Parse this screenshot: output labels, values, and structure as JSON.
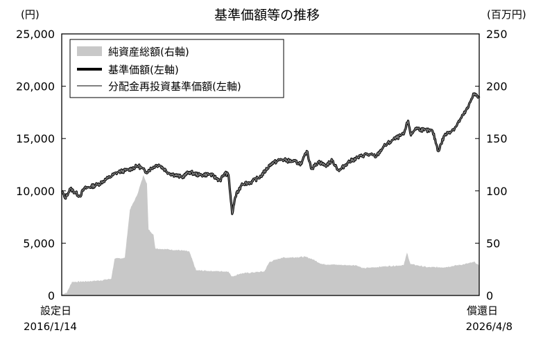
{
  "chart_data": {
    "type": "line",
    "title": "基準価額等の推移",
    "left_axis_unit": "(円)",
    "right_axis_unit": "(百万円)",
    "left_axis": {
      "ylim": [
        0,
        25000
      ],
      "ticks": [
        "0",
        "5,000",
        "10,000",
        "15,000",
        "20,000",
        "25,000"
      ]
    },
    "right_axis": {
      "ylim": [
        0,
        250
      ],
      "ticks": [
        "0",
        "50",
        "100",
        "150",
        "200",
        "250"
      ]
    },
    "x_axis": {
      "start_label": "設定日",
      "start_date": "2016/1/14",
      "end_label": "償還日",
      "end_date": "2026/4/8",
      "xlim": [
        "2016-01-14",
        "2026-04-08"
      ]
    },
    "legend": {
      "placement": "top-left",
      "entries": [
        "純資産総額(右軸)",
        "基準価額(左軸)",
        "分配金再投資基準価額(左軸)"
      ]
    },
    "colors": {
      "net_assets": "#c8c8c8",
      "nav": "#000000",
      "reinvested": "#808080"
    },
    "series": [
      {
        "name": "純資産総額(右軸)",
        "type": "area",
        "axis": "right",
        "points": [
          [
            "2016-01-14",
            1
          ],
          [
            "2016-03-01",
            3
          ],
          [
            "2016-04-15",
            13
          ],
          [
            "2016-09-01",
            13.5
          ],
          [
            "2017-01-01",
            14.5
          ],
          [
            "2017-04-01",
            16
          ],
          [
            "2017-05-01",
            35
          ],
          [
            "2017-08-01",
            36
          ],
          [
            "2017-09-15",
            82
          ],
          [
            "2017-11-15",
            95
          ],
          [
            "2018-01-15",
            115
          ],
          [
            "2018-02-15",
            107
          ],
          [
            "2018-03-01",
            63
          ],
          [
            "2018-04-15",
            58
          ],
          [
            "2018-05-01",
            45
          ],
          [
            "2018-09-01",
            44
          ],
          [
            "2019-01-01",
            43
          ],
          [
            "2019-03-01",
            42
          ],
          [
            "2019-05-01",
            24
          ],
          [
            "2020-01-01",
            23
          ],
          [
            "2020-02-15",
            23
          ],
          [
            "2020-03-15",
            18
          ],
          [
            "2020-06-01",
            21
          ],
          [
            "2021-01-01",
            23
          ],
          [
            "2021-02-15",
            32
          ],
          [
            "2021-06-01",
            36
          ],
          [
            "2022-01-01",
            37
          ],
          [
            "2022-03-01",
            35
          ],
          [
            "2022-06-01",
            30
          ],
          [
            "2023-01-01",
            29
          ],
          [
            "2023-04-01",
            29
          ],
          [
            "2023-06-01",
            26
          ],
          [
            "2024-01-01",
            28
          ],
          [
            "2024-06-01",
            29
          ],
          [
            "2024-07-01",
            41
          ],
          [
            "2024-08-01",
            30
          ],
          [
            "2025-01-01",
            27
          ],
          [
            "2025-06-01",
            27
          ],
          [
            "2025-12-01",
            30
          ],
          [
            "2026-03-01",
            32
          ],
          [
            "2026-04-08",
            28
          ]
        ]
      },
      {
        "name": "基準価額(左軸)",
        "axis": "left",
        "points": [
          [
            "2016-01-14",
            10000
          ],
          [
            "2016-02-12",
            9300
          ],
          [
            "2016-04-01",
            10200
          ],
          [
            "2016-06-24",
            9500
          ],
          [
            "2016-08-01",
            10200
          ],
          [
            "2016-12-01",
            10600
          ],
          [
            "2017-03-01",
            11200
          ],
          [
            "2017-06-01",
            11800
          ],
          [
            "2017-09-01",
            12000
          ],
          [
            "2017-12-01",
            12400
          ],
          [
            "2018-02-06",
            11800
          ],
          [
            "2018-05-01",
            12400
          ],
          [
            "2018-06-01",
            12500
          ],
          [
            "2018-09-01",
            11700
          ],
          [
            "2018-12-25",
            11300
          ],
          [
            "2019-03-01",
            11800
          ],
          [
            "2019-06-01",
            11500
          ],
          [
            "2019-09-01",
            11600
          ],
          [
            "2019-12-01",
            11000
          ],
          [
            "2020-01-15",
            11700
          ],
          [
            "2020-02-15",
            11500
          ],
          [
            "2020-03-19",
            7800
          ],
          [
            "2020-04-15",
            9400
          ],
          [
            "2020-06-15",
            10700
          ],
          [
            "2020-09-01",
            10800
          ],
          [
            "2020-12-01",
            11400
          ],
          [
            "2021-03-01",
            12600
          ],
          [
            "2021-06-01",
            13000
          ],
          [
            "2021-09-15",
            12800
          ],
          [
            "2021-12-01",
            12600
          ],
          [
            "2022-01-15",
            13800
          ],
          [
            "2022-03-01",
            12100
          ],
          [
            "2022-05-01",
            12800
          ],
          [
            "2022-07-01",
            12400
          ],
          [
            "2022-09-01",
            12900
          ],
          [
            "2022-11-01",
            11900
          ],
          [
            "2023-01-15",
            12700
          ],
          [
            "2023-04-01",
            13100
          ],
          [
            "2023-07-01",
            13500
          ],
          [
            "2023-10-01",
            13300
          ],
          [
            "2023-12-01",
            14200
          ],
          [
            "2024-03-01",
            14900
          ],
          [
            "2024-06-01",
            15400
          ],
          [
            "2024-07-11",
            16700
          ],
          [
            "2024-08-05",
            15300
          ],
          [
            "2024-09-15",
            16000
          ],
          [
            "2024-12-01",
            15800
          ],
          [
            "2025-02-15",
            15700
          ],
          [
            "2025-04-07",
            13800
          ],
          [
            "2025-06-01",
            15300
          ],
          [
            "2025-09-01",
            16000
          ],
          [
            "2025-11-01",
            17000
          ],
          [
            "2026-01-01",
            18000
          ],
          [
            "2026-02-15",
            19300
          ],
          [
            "2026-04-08",
            18900
          ]
        ]
      },
      {
        "name": "分配金再投資基準価額(左軸)",
        "axis": "left",
        "points": [
          [
            "2016-01-14",
            10000
          ],
          [
            "2016-02-12",
            9300
          ],
          [
            "2016-04-01",
            10200
          ],
          [
            "2016-06-24",
            9500
          ],
          [
            "2016-08-01",
            10200
          ],
          [
            "2016-12-01",
            10600
          ],
          [
            "2017-03-01",
            11200
          ],
          [
            "2017-06-01",
            11800
          ],
          [
            "2017-09-01",
            12000
          ],
          [
            "2017-12-01",
            12400
          ],
          [
            "2018-02-06",
            11800
          ],
          [
            "2018-05-01",
            12400
          ],
          [
            "2018-06-01",
            12500
          ],
          [
            "2018-09-01",
            11700
          ],
          [
            "2018-12-25",
            11300
          ],
          [
            "2019-03-01",
            11800
          ],
          [
            "2019-06-01",
            11500
          ],
          [
            "2019-09-01",
            11600
          ],
          [
            "2019-12-01",
            11000
          ],
          [
            "2020-01-15",
            11700
          ],
          [
            "2020-02-15",
            11500
          ],
          [
            "2020-03-19",
            7800
          ],
          [
            "2020-04-15",
            9400
          ],
          [
            "2020-06-15",
            10700
          ],
          [
            "2020-09-01",
            10800
          ],
          [
            "2020-12-01",
            11400
          ],
          [
            "2021-03-01",
            12600
          ],
          [
            "2021-06-01",
            13000
          ],
          [
            "2021-09-15",
            12800
          ],
          [
            "2021-12-01",
            12600
          ],
          [
            "2022-01-15",
            13800
          ],
          [
            "2022-03-01",
            12100
          ],
          [
            "2022-05-01",
            12800
          ],
          [
            "2022-07-01",
            12400
          ],
          [
            "2022-09-01",
            12900
          ],
          [
            "2022-11-01",
            11900
          ],
          [
            "2023-01-15",
            12700
          ],
          [
            "2023-04-01",
            13100
          ],
          [
            "2023-07-01",
            13500
          ],
          [
            "2023-10-01",
            13300
          ],
          [
            "2023-12-01",
            14200
          ],
          [
            "2024-03-01",
            14900
          ],
          [
            "2024-06-01",
            15400
          ],
          [
            "2024-07-11",
            16700
          ],
          [
            "2024-08-05",
            15300
          ],
          [
            "2024-09-15",
            16000
          ],
          [
            "2024-12-01",
            15800
          ],
          [
            "2025-02-15",
            15700
          ],
          [
            "2025-04-07",
            13800
          ],
          [
            "2025-06-01",
            15300
          ],
          [
            "2025-09-01",
            16000
          ],
          [
            "2025-11-01",
            17000
          ],
          [
            "2026-01-01",
            18000
          ],
          [
            "2026-02-15",
            19300
          ],
          [
            "2026-04-08",
            18900
          ]
        ]
      }
    ]
  }
}
